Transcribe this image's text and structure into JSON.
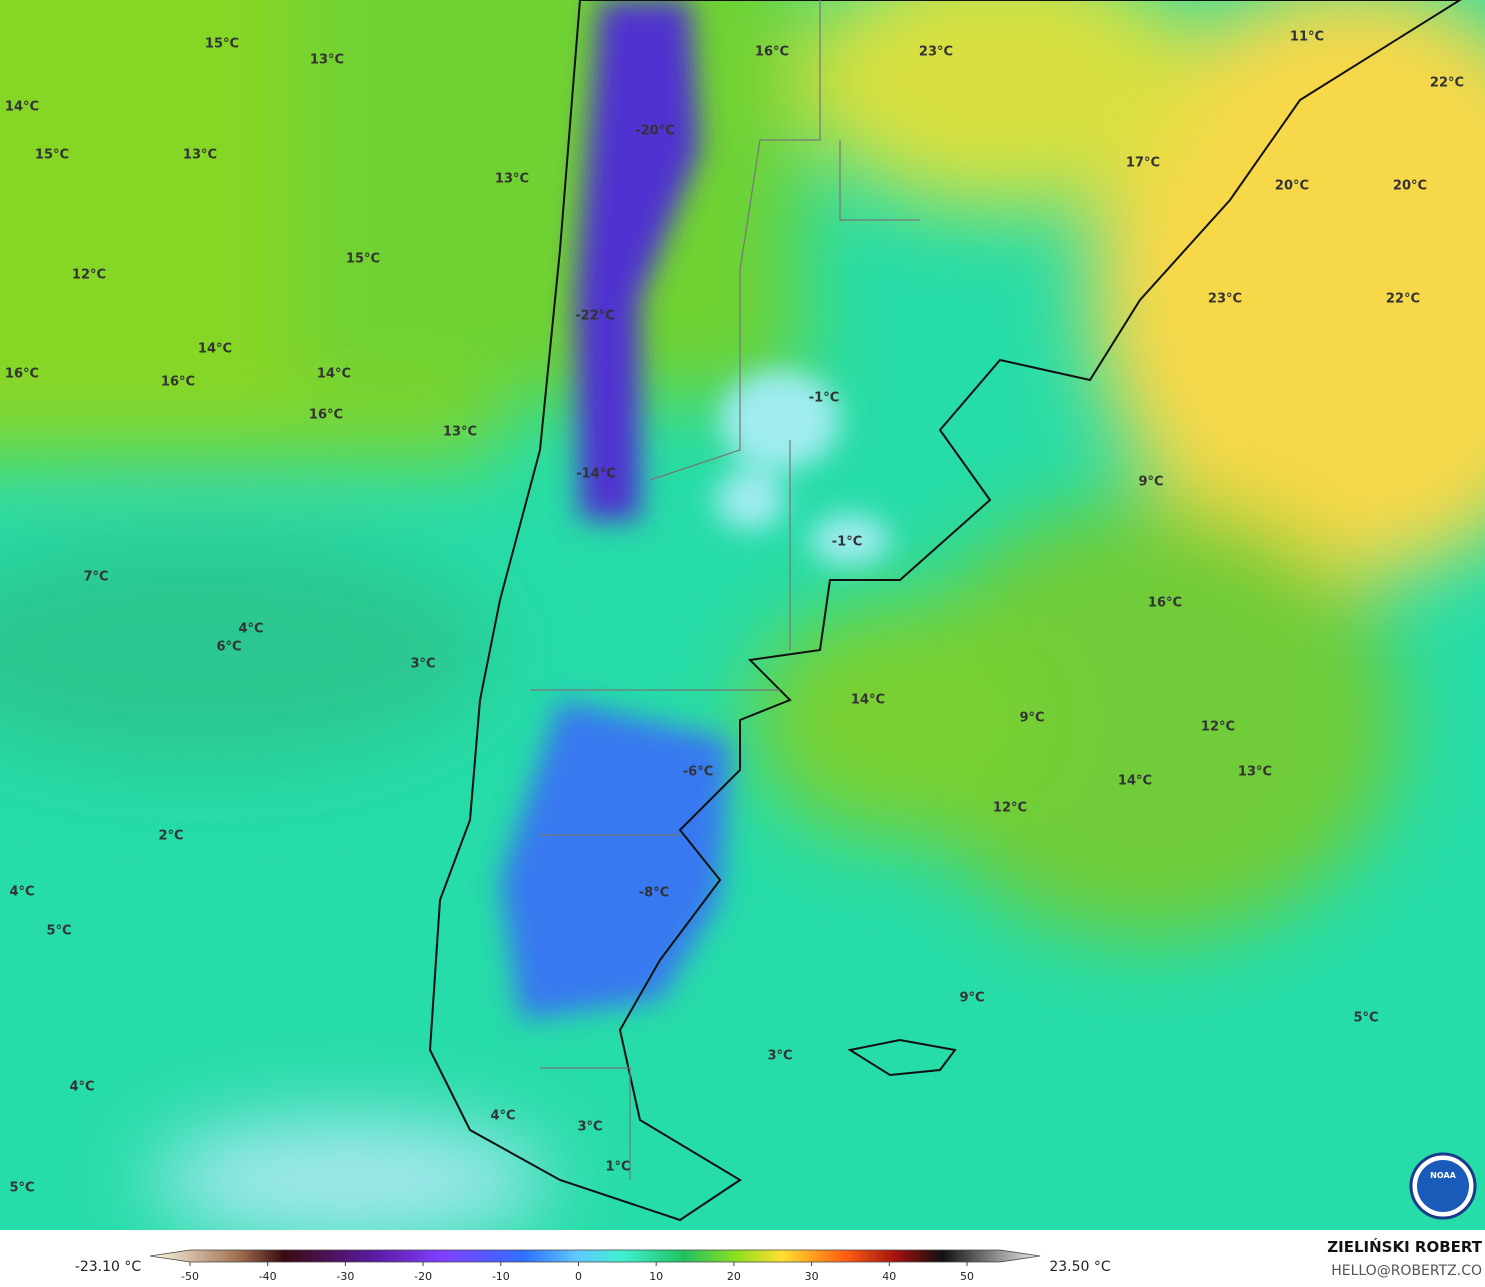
{
  "map": {
    "labels": [
      "15°C",
      "13°C",
      "14°C",
      "15°C",
      "13°C",
      "13°C",
      "16°C",
      "23°C",
      "11°C",
      "22°C",
      "-20°C",
      "17°C",
      "20°C",
      "20°C",
      "12°C",
      "15°C",
      "23°C",
      "22°C",
      "-22°C",
      "14°C",
      "16°C",
      "16°C",
      "14°C",
      "16°C",
      "13°C",
      "-1°C",
      "-14°C",
      "9°C",
      "-1°C",
      "7°C",
      "16°C",
      "4°C",
      "6°C",
      "3°C",
      "14°C",
      "9°C",
      "12°C",
      "-6°C",
      "13°C",
      "14°C",
      "12°C",
      "2°C",
      "-8°C",
      "4°C",
      "5°C",
      "9°C",
      "5°C",
      "3°C",
      "4°C",
      "4°C",
      "3°C",
      "1°C",
      "5°C"
    ],
    "logo": "NOAA"
  },
  "colorbar": {
    "min_label": "-23.10 °C",
    "max_label": "23.50 °C",
    "ticks": [
      -50,
      -40,
      -30,
      -20,
      -10,
      0,
      10,
      20,
      30,
      40,
      50
    ]
  },
  "credit": {
    "name": "ZIELIŃSKI ROBERT",
    "email": "HELLO@ROBERTZ.CO"
  }
}
